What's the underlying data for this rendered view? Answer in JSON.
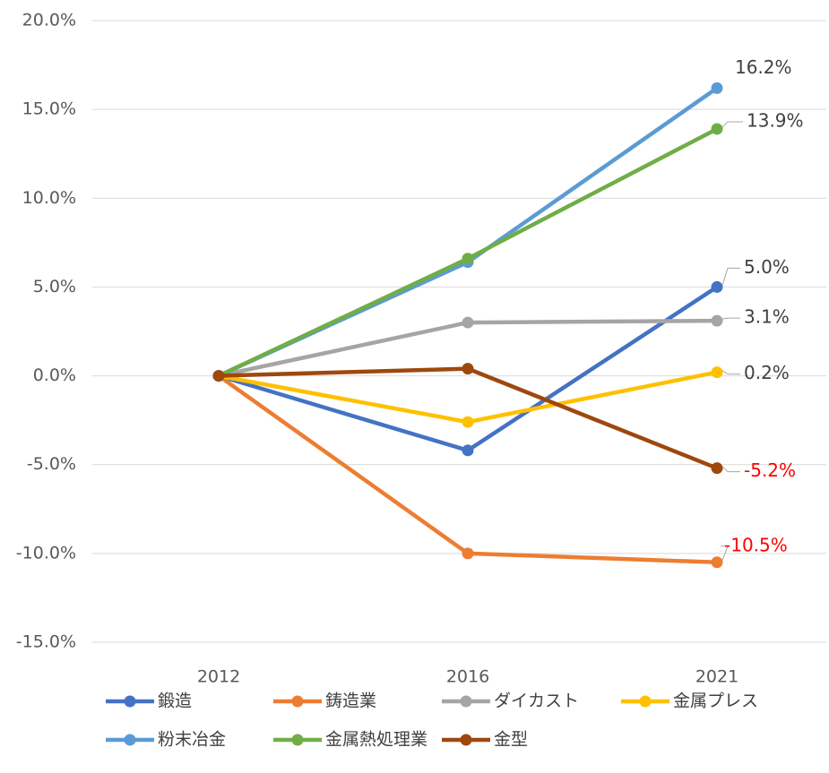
{
  "chart_data": {
    "type": "line",
    "categories": [
      "2012",
      "2016",
      "2021"
    ],
    "ylim": [
      -15,
      20
    ],
    "yticks": [
      {
        "value": -15,
        "label": "-15.0%"
      },
      {
        "value": -10,
        "label": "-10.0%"
      },
      {
        "value": -5,
        "label": "-5.0%"
      },
      {
        "value": 0,
        "label": "0.0%"
      },
      {
        "value": 5,
        "label": "5.0%"
      },
      {
        "value": 10,
        "label": "10.0%"
      },
      {
        "value": 15,
        "label": "15.0%"
      },
      {
        "value": 20,
        "label": "20.0%"
      }
    ],
    "grid": true,
    "legend": "bottom",
    "series": [
      {
        "name": "鍛造",
        "color": "#4472c4",
        "values": [
          0,
          -4.2,
          5.0
        ],
        "value_labels": [
          null,
          null,
          "5.0%"
        ]
      },
      {
        "name": "鋳造業",
        "color": "#ed7d31",
        "values": [
          0,
          -10.0,
          -10.5
        ],
        "value_labels": [
          null,
          null,
          "-10.5%"
        ]
      },
      {
        "name": "ダイカスト",
        "color": "#a5a5a5",
        "values": [
          0,
          3.0,
          3.1
        ],
        "value_labels": [
          null,
          null,
          "3.1%"
        ]
      },
      {
        "name": "金属プレス",
        "color": "#ffc000",
        "values": [
          0,
          -2.6,
          0.2
        ],
        "value_labels": [
          null,
          null,
          "0.2%"
        ]
      },
      {
        "name": "粉末冶金",
        "color": "#5b9bd5",
        "values": [
          0,
          6.4,
          16.2
        ],
        "value_labels": [
          null,
          null,
          "16.2%"
        ]
      },
      {
        "name": "金属熱処理業",
        "color": "#70ad47",
        "values": [
          0,
          6.6,
          13.9
        ],
        "value_labels": [
          null,
          null,
          "13.9%"
        ]
      },
      {
        "name": "金型",
        "color": "#9e480e",
        "values": [
          0,
          0.4,
          -5.2
        ],
        "value_labels": [
          null,
          null,
          "-5.2%"
        ]
      }
    ]
  }
}
